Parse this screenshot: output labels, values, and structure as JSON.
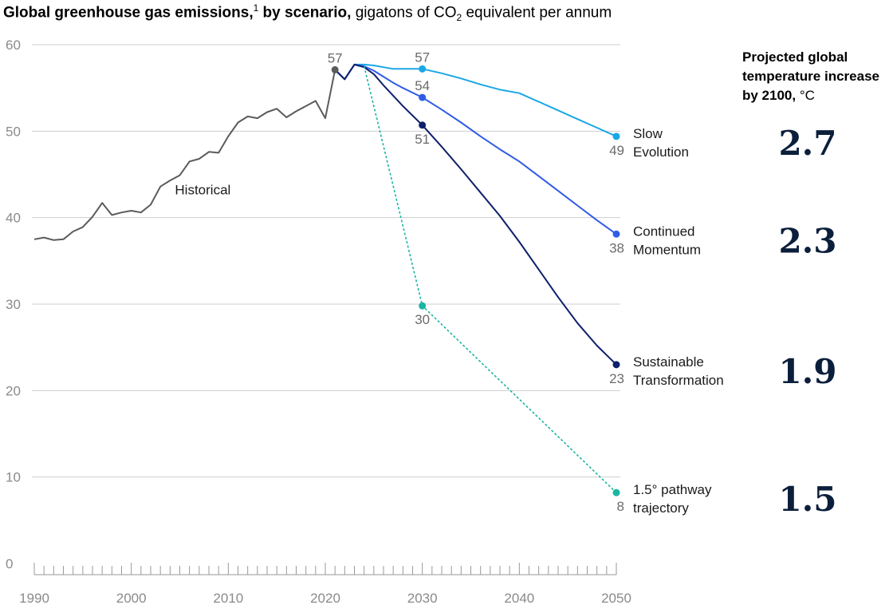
{
  "title": {
    "bold": "Global greenhouse gas emissions,",
    "footnote": "1",
    "bold2": " by scenario,",
    "rest_prefix": " gigatons of CO",
    "subscript": "2",
    "rest_suffix": " equivalent per annum"
  },
  "temperature_header": {
    "bold": "Projected global temperature increase by 2100,",
    "unit": " °C"
  },
  "chart_data": {
    "type": "line",
    "title": "Global greenhouse gas emissions, by scenario",
    "ylabel": "gigatons of CO2 equivalent per annum",
    "xlim": [
      1990,
      2050
    ],
    "ylim": [
      0,
      60
    ],
    "yticks": [
      0,
      10,
      20,
      30,
      40,
      50,
      60
    ],
    "xticks": [
      1990,
      2000,
      2010,
      2020,
      2030,
      2040,
      2050
    ],
    "grid": true,
    "series": [
      {
        "name": "Historical",
        "color": "#5b5b5b",
        "dashed": false,
        "x": [
          1990,
          1991,
          1992,
          1993,
          1994,
          1995,
          1996,
          1997,
          1998,
          1999,
          2000,
          2001,
          2002,
          2003,
          2004,
          2005,
          2006,
          2007,
          2008,
          2009,
          2010,
          2011,
          2012,
          2013,
          2014,
          2015,
          2016,
          2017,
          2018,
          2019,
          2020,
          2021
        ],
        "y": [
          37.5,
          37.7,
          37.4,
          37.5,
          38.4,
          38.9,
          40.1,
          41.7,
          40.3,
          40.6,
          40.8,
          40.6,
          41.5,
          43.6,
          44.3,
          44.9,
          46.5,
          46.8,
          47.6,
          47.5,
          49.4,
          51.0,
          51.7,
          51.5,
          52.2,
          52.6,
          51.6,
          52.3,
          52.9,
          53.5,
          51.5,
          57.1
        ],
        "markers": [
          {
            "x": 2021,
            "y": 57.1,
            "label": "57",
            "pos": "above"
          }
        ]
      },
      {
        "name": "Slow Evolution",
        "color": "#1aa7e6",
        "dashed": false,
        "x": [
          2021,
          2022,
          2023,
          2024,
          2025,
          2026,
          2027,
          2028,
          2029,
          2030,
          2032,
          2034,
          2036,
          2038,
          2040,
          2042,
          2044,
          2046,
          2048,
          2050
        ],
        "y": [
          57.1,
          56.0,
          57.7,
          57.7,
          57.6,
          57.4,
          57.2,
          57.2,
          57.2,
          57.2,
          56.7,
          56.1,
          55.4,
          54.8,
          54.4,
          53.4,
          52.4,
          51.4,
          50.4,
          49.4
        ],
        "markers": [
          {
            "x": 2030,
            "y": 57.2,
            "label": "57",
            "pos": "above"
          },
          {
            "x": 2050,
            "y": 49.4,
            "label": "49",
            "pos": "below"
          }
        ],
        "end_label": [
          "Slow",
          "Evolution"
        ],
        "temperature": "2.7"
      },
      {
        "name": "Continued Momentum",
        "color": "#2f5ce6",
        "dashed": false,
        "x": [
          2021,
          2022,
          2023,
          2024,
          2025,
          2026,
          2027,
          2028,
          2030,
          2032,
          2034,
          2036,
          2038,
          2040,
          2042,
          2044,
          2046,
          2048,
          2050
        ],
        "y": [
          57.1,
          56.0,
          57.7,
          57.5,
          57.0,
          56.3,
          55.6,
          55.0,
          53.9,
          52.5,
          51.0,
          49.4,
          47.9,
          46.5,
          44.8,
          43.1,
          41.4,
          39.7,
          38.1
        ],
        "markers": [
          {
            "x": 2030,
            "y": 53.9,
            "label": "54",
            "pos": "above"
          },
          {
            "x": 2050,
            "y": 38.1,
            "label": "38",
            "pos": "below"
          }
        ],
        "end_label": [
          "Continued",
          "Momentum"
        ],
        "temperature": "2.3"
      },
      {
        "name": "Sustainable Transformation",
        "color": "#0e1f6b",
        "dashed": false,
        "x": [
          2021,
          2022,
          2023,
          2024,
          2025,
          2026,
          2027,
          2028,
          2030,
          2032,
          2034,
          2036,
          2038,
          2040,
          2042,
          2044,
          2046,
          2048,
          2050
        ],
        "y": [
          57.1,
          56.0,
          57.7,
          57.4,
          56.6,
          55.3,
          54.1,
          52.9,
          50.7,
          48.2,
          45.6,
          42.9,
          40.2,
          37.2,
          34.0,
          30.8,
          27.8,
          25.2,
          23.0
        ],
        "markers": [
          {
            "x": 2030,
            "y": 50.7,
            "label": "51",
            "pos": "below"
          },
          {
            "x": 2050,
            "y": 23.0,
            "label": "23",
            "pos": "below"
          }
        ],
        "end_label": [
          "Sustainable",
          "Transformation"
        ],
        "temperature": "1.9"
      },
      {
        "name": "1.5° pathway trajectory",
        "color": "#1ab5a3",
        "dashed": true,
        "x": [
          2024,
          2030,
          2050
        ],
        "y": [
          57.5,
          29.8,
          8.2
        ],
        "markers": [
          {
            "x": 2030,
            "y": 29.8,
            "label": "30",
            "pos": "below"
          },
          {
            "x": 2050,
            "y": 8.2,
            "label": "8",
            "pos": "below"
          }
        ],
        "end_label": [
          "1.5° pathway",
          "trajectory"
        ],
        "temperature": "1.5"
      }
    ],
    "annotations": [
      {
        "text": "Historical",
        "x": 2004.5,
        "y": 42.7
      }
    ]
  }
}
